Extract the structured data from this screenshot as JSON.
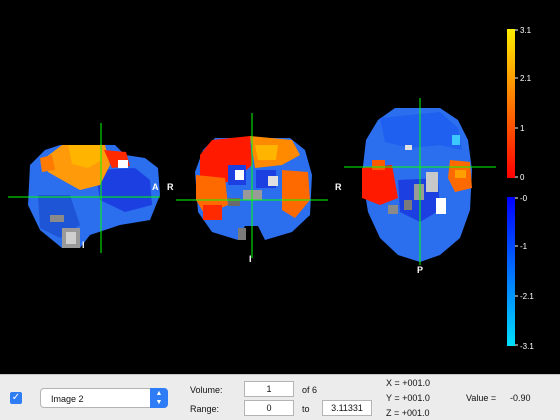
{
  "orientation_labels": {
    "sagittal_anterior": "A",
    "sagittal_inferior": "I",
    "coronal_right": "R",
    "coronal_inferior": "I",
    "axial_right": "R",
    "axial_posterior": "P"
  },
  "colorbar": {
    "positive_ticks": [
      "3.1",
      "2.1",
      "1",
      "0"
    ],
    "negative_ticks": [
      "-0",
      "-1",
      "-2.1",
      "-3.1"
    ],
    "positive_colors": [
      "#ffee00",
      "#ff0000"
    ],
    "negative_colors": [
      "#0000ff",
      "#00e0ff"
    ]
  },
  "crosshair_color": "#00ff00",
  "controls": {
    "checkbox_checked": "✓",
    "image_select": {
      "selected": "Image 2"
    },
    "volume_label": "Volume:",
    "volume_value": "1",
    "volume_of": "of 6",
    "range_label": "Range:",
    "range_min": "0",
    "range_to": "to",
    "range_max": "3.11331",
    "coords": {
      "x": "X = +001.0",
      "y": "Y = +001.0",
      "z": "Z = +001.0"
    },
    "value_label": "Value =",
    "value": "-0.90"
  }
}
